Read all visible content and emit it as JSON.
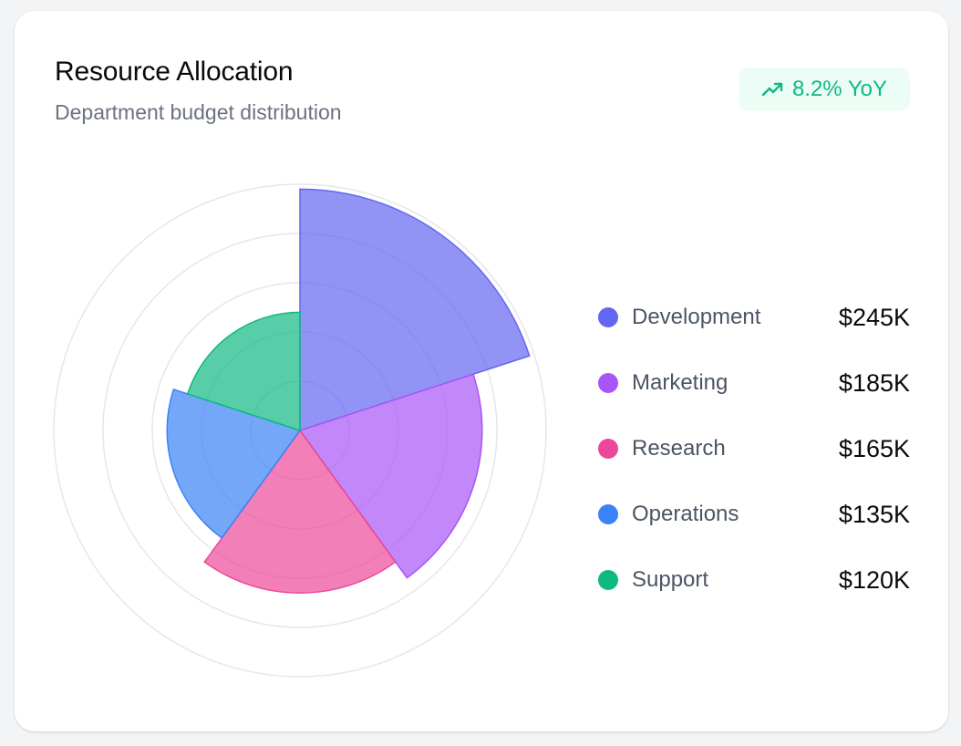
{
  "card": {
    "title": "Resource Allocation",
    "subtitle": "Department budget distribution",
    "badge": {
      "icon": "trending-up-icon",
      "text": "8.2% YoY",
      "color": "#10b981",
      "background": "#ecfdf5"
    }
  },
  "chart_data": {
    "type": "polar-area",
    "title": "Resource Allocation",
    "subtitle": "Department budget distribution",
    "categories": [
      "Development",
      "Marketing",
      "Research",
      "Operations",
      "Support"
    ],
    "values": [
      245,
      185,
      165,
      135,
      120
    ],
    "value_labels": [
      "$245K",
      "$185K",
      "$165K",
      "$135K",
      "$120K"
    ],
    "unit": "$K",
    "rlim": [
      0,
      250
    ],
    "rings": 5,
    "grid": true,
    "legend_position": "right",
    "colors": [
      "#6366f1",
      "#a855f7",
      "#ec4899",
      "#3b82f6",
      "#10b981"
    ]
  },
  "legend": {
    "items": [
      {
        "label": "Development",
        "value": "$245K",
        "color": "#6366f1"
      },
      {
        "label": "Marketing",
        "value": "$185K",
        "color": "#a855f7"
      },
      {
        "label": "Research",
        "value": "$165K",
        "color": "#ec4899"
      },
      {
        "label": "Operations",
        "value": "$135K",
        "color": "#3b82f6"
      },
      {
        "label": "Support",
        "value": "$120K",
        "color": "#10b981"
      }
    ]
  }
}
